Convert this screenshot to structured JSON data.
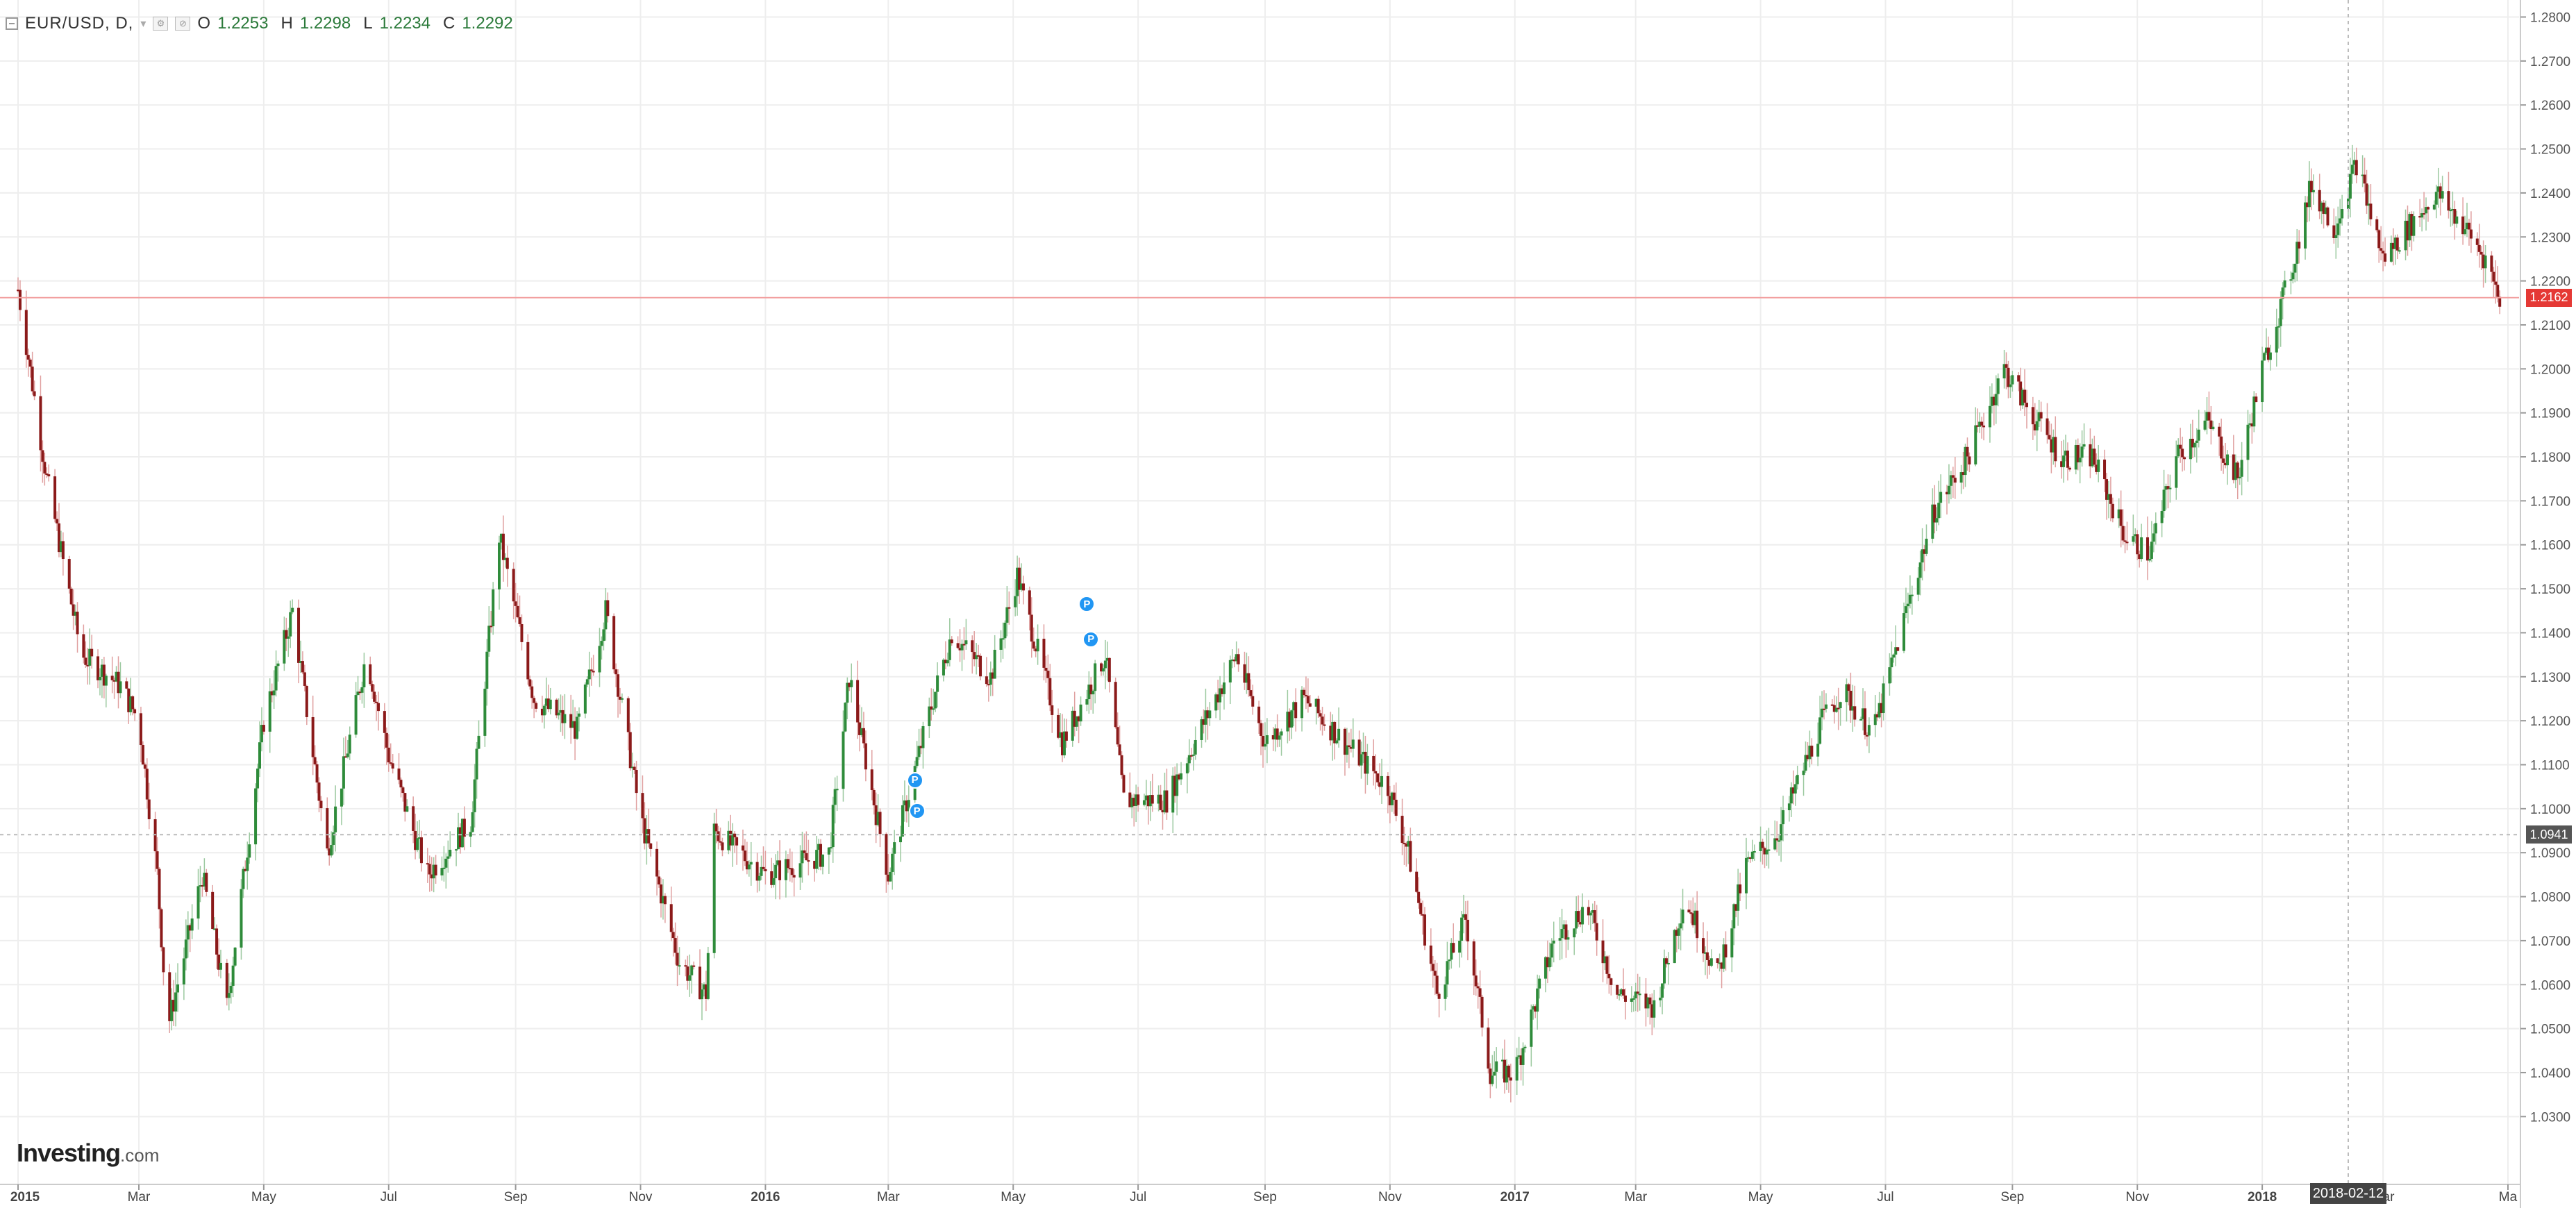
{
  "header": {
    "symbol": "EUR/USD, D,",
    "open_label": "O",
    "open": "1.2253",
    "high_label": "H",
    "high": "1.2298",
    "low_label": "L",
    "low": "1.2234",
    "close_label": "C",
    "close": "1.2292"
  },
  "logo": {
    "brand": "Investing",
    "domain": ".com"
  },
  "price_tag": {
    "value": "1.2162",
    "color": "#e53935"
  },
  "crosshair_tag": {
    "value": "1.0941",
    "color": "#555555"
  },
  "date_tag": {
    "value": "2018-02-12"
  },
  "colors": {
    "up": "#2e8b3a",
    "down": "#8b1a1a",
    "grid": "#eeeeee",
    "price_line": "#f2a0a0"
  },
  "chart_data": {
    "type": "candlestick",
    "title": "EUR/USD, D,",
    "xlabel": "",
    "ylabel": "",
    "ylim": [
      1.025,
      1.2815
    ],
    "yticks": [
      "1.0300",
      "1.0400",
      "1.0500",
      "1.0600",
      "1.0700",
      "1.0800",
      "1.0900",
      "1.1000",
      "1.1100",
      "1.1200",
      "1.1300",
      "1.1400",
      "1.1500",
      "1.1600",
      "1.1700",
      "1.1800",
      "1.1900",
      "1.2000",
      "1.2100",
      "1.2200",
      "1.2300",
      "1.2400",
      "1.2500",
      "1.2600",
      "1.2700",
      "1.2800"
    ],
    "xticks": [
      "2015",
      "Mar",
      "May",
      "Jul",
      "Sep",
      "Nov",
      "2016",
      "Mar",
      "May",
      "Jul",
      "Sep",
      "Nov",
      "2017",
      "Mar",
      "May",
      "Jul",
      "Sep",
      "Nov",
      "2018",
      "Mar",
      "Ma"
    ],
    "series": [
      {
        "values_close_path": [
          [
            "2015-01-01",
            1.218
          ],
          [
            "2015-01-15",
            1.175
          ],
          [
            "2015-02-01",
            1.135
          ],
          [
            "2015-02-20",
            1.128
          ],
          [
            "2015-03-01",
            1.12
          ],
          [
            "2015-03-10",
            1.085
          ],
          [
            "2015-03-15",
            1.05
          ],
          [
            "2015-04-01",
            1.085
          ],
          [
            "2015-04-13",
            1.055
          ],
          [
            "2015-05-01",
            1.12
          ],
          [
            "2015-05-15",
            1.145
          ],
          [
            "2015-06-01",
            1.09
          ],
          [
            "2015-06-20",
            1.135
          ],
          [
            "2015-07-01",
            1.112
          ],
          [
            "2015-07-20",
            1.085
          ],
          [
            "2015-08-10",
            1.097
          ],
          [
            "2015-08-24",
            1.162
          ],
          [
            "2015-09-10",
            1.125
          ],
          [
            "2015-10-01",
            1.118
          ],
          [
            "2015-10-15",
            1.145
          ],
          [
            "2015-11-01",
            1.098
          ],
          [
            "2015-11-20",
            1.065
          ],
          [
            "2015-12-03",
            1.058
          ],
          [
            "2015-12-07",
            1.095
          ],
          [
            "2016-01-01",
            1.085
          ],
          [
            "2016-02-01",
            1.09
          ],
          [
            "2016-02-11",
            1.13
          ],
          [
            "2016-03-01",
            1.085
          ],
          [
            "2016-03-20",
            1.12
          ],
          [
            "2016-04-01",
            1.14
          ],
          [
            "2016-04-20",
            1.13
          ],
          [
            "2016-05-03",
            1.153
          ],
          [
            "2016-05-25",
            1.115
          ],
          [
            "2016-06-15",
            1.135
          ],
          [
            "2016-06-24",
            1.102
          ],
          [
            "2016-07-15",
            1.102
          ],
          [
            "2016-08-18",
            1.135
          ],
          [
            "2016-09-01",
            1.115
          ],
          [
            "2016-09-20",
            1.125
          ],
          [
            "2016-10-10",
            1.115
          ],
          [
            "2016-10-31",
            1.105
          ],
          [
            "2016-11-10",
            1.09
          ],
          [
            "2016-11-24",
            1.058
          ],
          [
            "2016-12-08",
            1.075
          ],
          [
            "2016-12-20",
            1.04
          ],
          [
            "2017-01-01",
            1.04
          ],
          [
            "2017-01-20",
            1.07
          ],
          [
            "2017-02-05",
            1.078
          ],
          [
            "2017-02-20",
            1.058
          ],
          [
            "2017-03-10",
            1.055
          ],
          [
            "2017-03-25",
            1.08
          ],
          [
            "2017-04-10",
            1.062
          ],
          [
            "2017-04-24",
            1.087
          ],
          [
            "2017-05-10",
            1.095
          ],
          [
            "2017-05-31",
            1.12
          ],
          [
            "2017-06-10",
            1.127
          ],
          [
            "2017-06-25",
            1.117
          ],
          [
            "2017-07-10",
            1.143
          ],
          [
            "2017-07-25",
            1.168
          ],
          [
            "2017-08-10",
            1.18
          ],
          [
            "2017-08-28",
            1.2
          ],
          [
            "2017-09-10",
            1.19
          ],
          [
            "2017-09-25",
            1.18
          ],
          [
            "2017-10-10",
            1.18
          ],
          [
            "2017-10-26",
            1.162
          ],
          [
            "2017-11-07",
            1.158
          ],
          [
            "2017-11-20",
            1.18
          ],
          [
            "2017-12-05",
            1.188
          ],
          [
            "2017-12-20",
            1.175
          ],
          [
            "2018-01-01",
            1.2
          ],
          [
            "2018-01-15",
            1.222
          ],
          [
            "2018-01-25",
            1.242
          ],
          [
            "2018-02-05",
            1.232
          ],
          [
            "2018-02-16",
            1.247
          ],
          [
            "2018-03-01",
            1.225
          ],
          [
            "2018-03-15",
            1.233
          ],
          [
            "2018-03-27",
            1.24
          ],
          [
            "2018-04-10",
            1.232
          ],
          [
            "2018-04-20",
            1.225
          ],
          [
            "2018-04-27",
            1.2162
          ]
        ]
      }
    ],
    "last_price": 1.2162,
    "crosshair_price": 1.0941,
    "annotations": [
      {
        "label": "P",
        "date": "2016-03-14",
        "price": 1.1065
      },
      {
        "label": "P",
        "date": "2016-03-15",
        "price": 1.0995
      },
      {
        "label": "P",
        "date": "2016-06-06",
        "price": 1.1465
      },
      {
        "label": "P",
        "date": "2016-06-08",
        "price": 1.1385
      }
    ],
    "grid": true
  }
}
